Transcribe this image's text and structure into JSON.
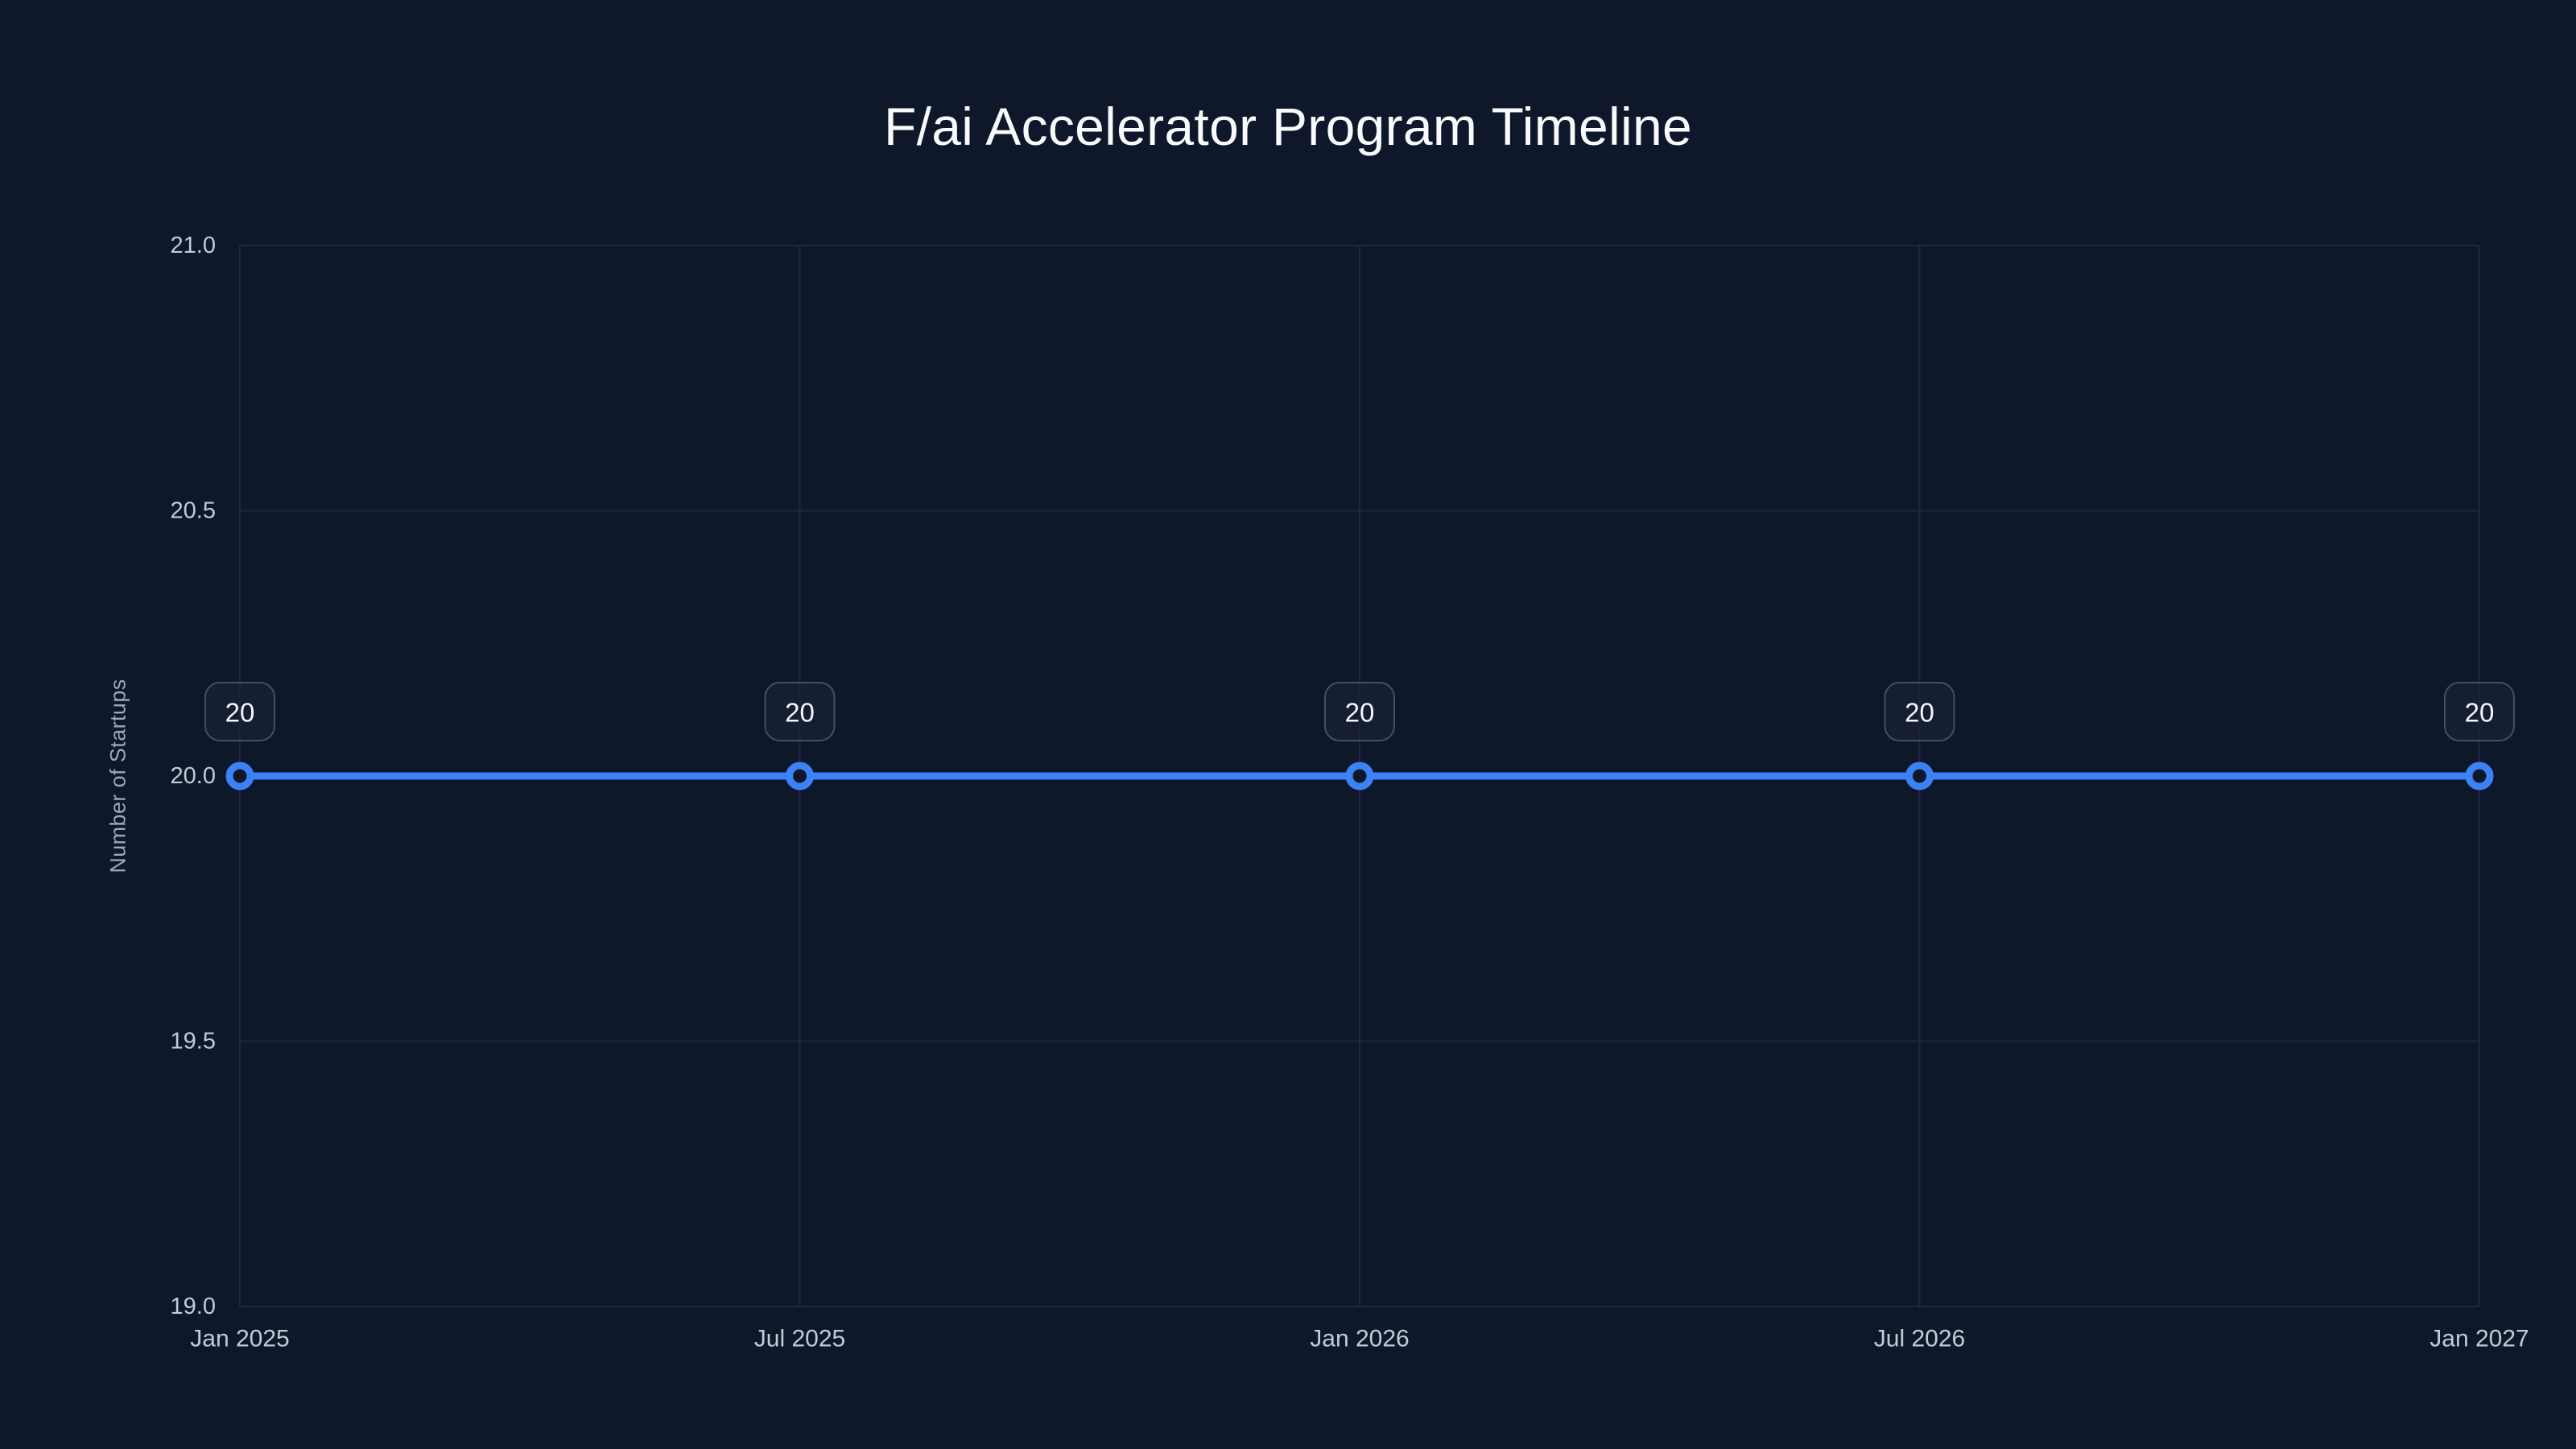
{
  "page": {
    "background": "#0f172a"
  },
  "chart_data": {
    "type": "line",
    "title": "F/ai Accelerator Program Timeline",
    "xlabel": "",
    "ylabel": "Number of Startups",
    "categories": [
      "Jan 2025",
      "Jul 2025",
      "Jan 2026",
      "Jul 2026",
      "Jan 2027"
    ],
    "series": [
      {
        "name": "Number of Startups",
        "values": [
          20,
          20,
          20,
          20,
          20
        ]
      }
    ],
    "point_labels": [
      "20",
      "20",
      "20",
      "20",
      "20"
    ],
    "ylim": [
      19.0,
      21.0
    ],
    "y_ticks": [
      21.0,
      20.5,
      20.0,
      19.5,
      19.0
    ],
    "y_tick_labels": [
      "21.0",
      "20.5",
      "20.0",
      "19.5",
      "19.0"
    ],
    "grid": true,
    "legend": false,
    "colors": {
      "background": "#0f172a",
      "grid": "#1e293b",
      "line": "#3b82f6",
      "point_fill": "#0f172a",
      "tick_label": "#c2cbd7",
      "axis_title": "#9ca8ba",
      "title": "#f8fafc",
      "badge_fill": "rgba(26,35,54,0.75)",
      "badge_border": "#434f63",
      "badge_text": "#f5f7fa"
    }
  }
}
